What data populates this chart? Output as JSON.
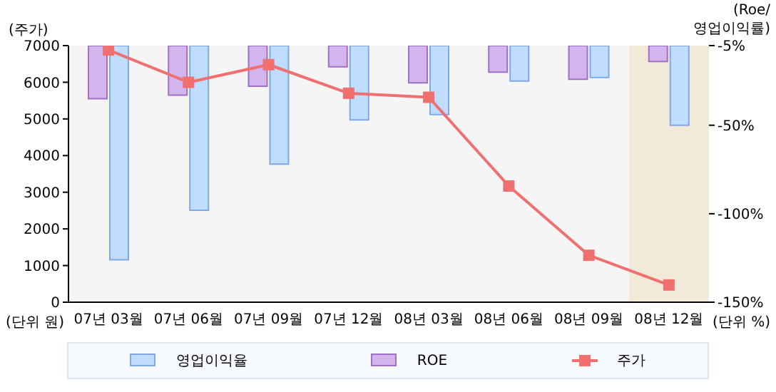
{
  "chart_data": {
    "type": "bar",
    "ylabel": "(주가)",
    "y2label": "(Roe/\n영업이익률)",
    "categories": [
      "07년 03월",
      "07년 06월",
      "07년 09월",
      "07년 12월",
      "08년 03월",
      "08년 06월",
      "08년 09월",
      "08년 12월"
    ],
    "series": [
      {
        "name": "영업이익율",
        "axis": "y2",
        "color": "#c0dcff",
        "values": [
          -126,
          -98,
          -72,
          -47,
          -44,
          -25,
          -23,
          -50
        ]
      },
      {
        "name": "ROE",
        "axis": "y2",
        "color": "#d4b4ec",
        "values": [
          -35,
          -33,
          -28,
          -17,
          -26,
          -20,
          -24,
          -14
        ]
      },
      {
        "name": "주가",
        "type": "line",
        "color": "#f07070",
        "marker": "square",
        "values": [
          6880,
          6000,
          6480,
          5700,
          5590,
          3170,
          1280,
          470
        ]
      }
    ],
    "ylim": [
      0,
      7000
    ],
    "yticks": [
      0,
      1000,
      2000,
      3000,
      4000,
      5000,
      6000,
      7000
    ],
    "y2lim": [
      -150,
      -5
    ],
    "y2ticks": [
      {
        "value": -5,
        "label": "-5%"
      },
      {
        "value": -50,
        "label": "-50%"
      },
      {
        "value": -100,
        "label": "-100%"
      },
      {
        "value": -150,
        "label": "-150%"
      }
    ],
    "bands": [
      {
        "axis": "x",
        "from": "08년 12월",
        "to": "08년 12월",
        "color": "#f3e9d9"
      }
    ],
    "annotations": [
      "(단위 원)",
      "(단위 %)"
    ],
    "legend": "bottom"
  }
}
